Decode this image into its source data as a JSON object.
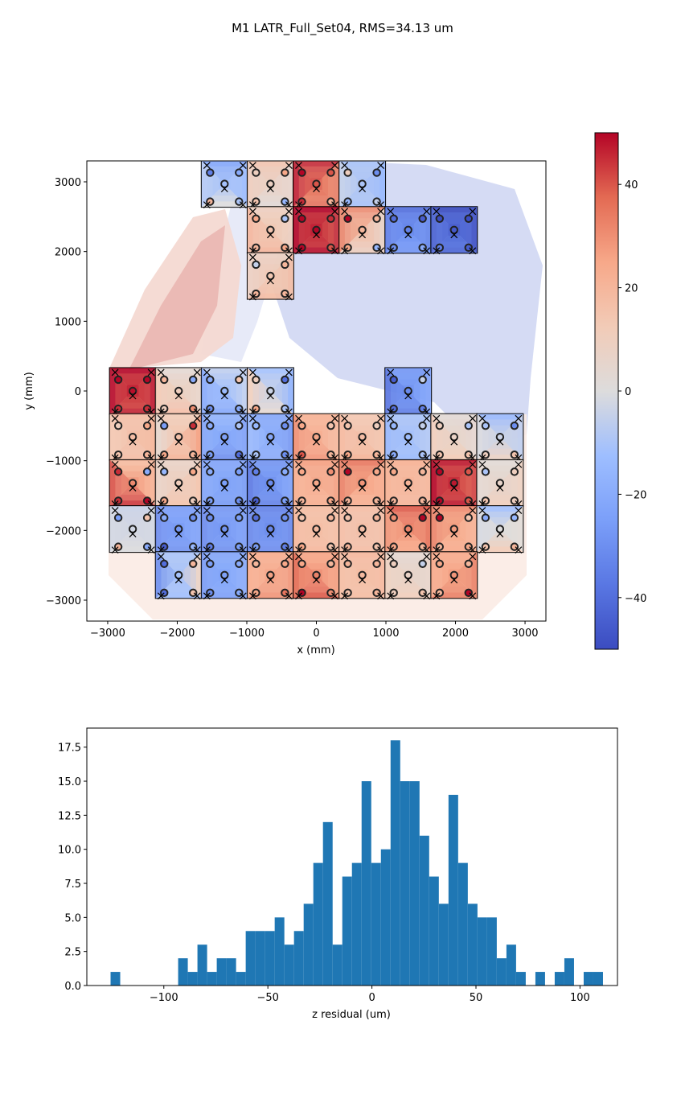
{
  "figure": {
    "suptitle": "M1 LATR_Full_Set04, RMS=34.13 um"
  },
  "chart_data": [
    {
      "type": "heatmap",
      "title": "",
      "xlabel": "x (mm)",
      "ylabel": "y (mm)",
      "xlim": [
        -3300,
        3300
      ],
      "ylim": [
        -3300,
        3300
      ],
      "xticks": [
        -3000,
        -2000,
        -1000,
        0,
        1000,
        2000,
        3000
      ],
      "xtick_labels": [
        "−3000",
        "−2000",
        "−1000",
        "0",
        "1000",
        "2000",
        "3000"
      ],
      "yticks": [
        -3000,
        -2000,
        -1000,
        0,
        1000,
        2000,
        3000
      ],
      "ytick_labels": [
        "−3000",
        "−2000",
        "−1000",
        "0",
        "1000",
        "2000",
        "3000"
      ],
      "grid": false,
      "colormap": "coolwarm",
      "colorbar": {
        "vmin": -50,
        "vmax": 50,
        "ticks": [
          40,
          20,
          0,
          -20,
          -40
        ],
        "tick_labels": [
          "40",
          "20",
          "0",
          "−20",
          "−40"
        ],
        "colors": {
          "low": "#3b4cc0",
          "mid": "#dddddd",
          "high": "#b40426"
        }
      },
      "panel_size_mm": 670,
      "panels": [
        {
          "x": -1320,
          "y": 2970,
          "z": [
            -35,
            -20,
            20,
            -10
          ]
        },
        {
          "x": -660,
          "y": 2970,
          "z": [
            10,
            25,
            15,
            -15
          ]
        },
        {
          "x": 0,
          "y": 2970,
          "z": [
            55,
            40,
            45,
            20
          ]
        },
        {
          "x": 660,
          "y": 2970,
          "z": [
            10,
            -30,
            -15,
            -5
          ]
        },
        {
          "x": -660,
          "y": 2310,
          "z": [
            25,
            -10,
            20,
            25
          ]
        },
        {
          "x": 0,
          "y": 2310,
          "z": [
            60,
            45,
            55,
            40
          ]
        },
        {
          "x": 660,
          "y": 2310,
          "z": [
            50,
            20,
            25,
            -15
          ]
        },
        {
          "x": 1320,
          "y": 2310,
          "z": [
            -40,
            -45,
            -30,
            -20
          ]
        },
        {
          "x": 1980,
          "y": 2310,
          "z": [
            -50,
            -55,
            -35,
            -45
          ]
        },
        {
          "x": -660,
          "y": 1650,
          "z": [
            -5,
            20,
            20,
            20
          ]
        },
        {
          "x": -2640,
          "y": 0,
          "z": [
            55,
            50,
            45,
            45
          ]
        },
        {
          "x": -1980,
          "y": 0,
          "z": [
            20,
            -20,
            10,
            30
          ]
        },
        {
          "x": -1320,
          "y": 0,
          "z": [
            -20,
            15,
            -30,
            -20
          ]
        },
        {
          "x": -660,
          "y": 0,
          "z": [
            10,
            -40,
            25,
            -10
          ]
        },
        {
          "x": 1320,
          "y": 0,
          "z": [
            -45,
            -5,
            -40,
            -35
          ]
        },
        {
          "x": -2640,
          "y": -660,
          "z": [
            10,
            25,
            15,
            20
          ]
        },
        {
          "x": -1980,
          "y": -660,
          "z": [
            -25,
            45,
            25,
            20
          ]
        },
        {
          "x": -1320,
          "y": -660,
          "z": [
            -20,
            -10,
            -25,
            -40
          ]
        },
        {
          "x": -660,
          "y": -660,
          "z": [
            -15,
            -30,
            -10,
            -30
          ]
        },
        {
          "x": 0,
          "y": -660,
          "z": [
            25,
            15,
            40,
            20
          ]
        },
        {
          "x": 660,
          "y": -660,
          "z": [
            15,
            10,
            25,
            20
          ]
        },
        {
          "x": 1320,
          "y": -660,
          "z": [
            -15,
            -5,
            -20,
            -10
          ]
        },
        {
          "x": 1980,
          "y": -660,
          "z": [
            10,
            -10,
            15,
            15
          ]
        },
        {
          "x": 2640,
          "y": -660,
          "z": [
            -10,
            -30,
            10,
            15
          ]
        },
        {
          "x": -2640,
          "y": -1320,
          "z": [
            45,
            -20,
            45,
            55
          ]
        },
        {
          "x": -1980,
          "y": -1320,
          "z": [
            -15,
            25,
            25,
            10
          ]
        },
        {
          "x": -1320,
          "y": -1320,
          "z": [
            -20,
            -25,
            -25,
            -30
          ]
        },
        {
          "x": -660,
          "y": -1320,
          "z": [
            -35,
            -20,
            -45,
            -25
          ]
        },
        {
          "x": 0,
          "y": -1320,
          "z": [
            25,
            30,
            20,
            25
          ]
        },
        {
          "x": 660,
          "y": -1320,
          "z": [
            50,
            25,
            20,
            20
          ]
        },
        {
          "x": 1320,
          "y": -1320,
          "z": [
            25,
            20,
            20,
            20
          ]
        },
        {
          "x": 1980,
          "y": -1320,
          "z": [
            55,
            40,
            55,
            40
          ]
        },
        {
          "x": 2640,
          "y": -1320,
          "z": [
            -10,
            10,
            15,
            10
          ]
        },
        {
          "x": -2640,
          "y": -1980,
          "z": [
            -25,
            15,
            20,
            -20
          ]
        },
        {
          "x": -1980,
          "y": -1980,
          "z": [
            -20,
            -30,
            -45,
            -15
          ]
        },
        {
          "x": -1320,
          "y": -1980,
          "z": [
            -30,
            -25,
            -35,
            -25
          ]
        },
        {
          "x": -660,
          "y": -1980,
          "z": [
            -40,
            -30,
            -25,
            -35
          ]
        },
        {
          "x": 0,
          "y": -1980,
          "z": [
            15,
            20,
            25,
            15
          ]
        },
        {
          "x": 660,
          "y": -1980,
          "z": [
            15,
            20,
            20,
            15
          ]
        },
        {
          "x": 1320,
          "y": -1980,
          "z": [
            30,
            55,
            25,
            20
          ]
        },
        {
          "x": 1980,
          "y": -1980,
          "z": [
            50,
            15,
            20,
            25
          ]
        },
        {
          "x": 2640,
          "y": -1980,
          "z": [
            -20,
            -15,
            15,
            20
          ]
        },
        {
          "x": -1980,
          "y": -2640,
          "z": [
            -40,
            20,
            -40,
            15
          ]
        },
        {
          "x": -1320,
          "y": -2640,
          "z": [
            -25,
            -20,
            -30,
            -20
          ]
        },
        {
          "x": -660,
          "y": -2640,
          "z": [
            20,
            25,
            25,
            35
          ]
        },
        {
          "x": 0,
          "y": -2640,
          "z": [
            25,
            20,
            55,
            30
          ]
        },
        {
          "x": 660,
          "y": -2640,
          "z": [
            20,
            20,
            15,
            20
          ]
        },
        {
          "x": 1320,
          "y": -2640,
          "z": [
            10,
            -5,
            10,
            15
          ]
        },
        {
          "x": 1980,
          "y": -2640,
          "z": [
            25,
            20,
            20,
            50
          ]
        }
      ]
    },
    {
      "type": "bar",
      "title": "",
      "xlabel": "z residual (um)",
      "ylabel": "",
      "xlim": [
        -137,
        118
      ],
      "ylim": [
        0,
        18.9
      ],
      "xticks": [
        -100,
        -50,
        0,
        50,
        100
      ],
      "xtick_labels": [
        "−100",
        "−50",
        "0",
        "50",
        "100"
      ],
      "yticks": [
        0,
        2.5,
        5,
        7.5,
        10,
        12.5,
        15,
        17.5
      ],
      "ytick_labels": [
        "0.0",
        "2.5",
        "5.0",
        "7.5",
        "10.0",
        "12.5",
        "15.0",
        "17.5"
      ],
      "grid": false,
      "bar_color": "#1f77b4",
      "bin_start": -125.6,
      "bin_width": 4.64,
      "counts": [
        1,
        0,
        0,
        0,
        0,
        0,
        0,
        2,
        1,
        3,
        1,
        2,
        2,
        1,
        4,
        4,
        4,
        5,
        3,
        4,
        6,
        9,
        12,
        3,
        8,
        9,
        15,
        9,
        10,
        18,
        15,
        15,
        11,
        8,
        6,
        14,
        9,
        6,
        5,
        5,
        2,
        3,
        1,
        0,
        1,
        0,
        1,
        2,
        0,
        1,
        1
      ]
    }
  ]
}
